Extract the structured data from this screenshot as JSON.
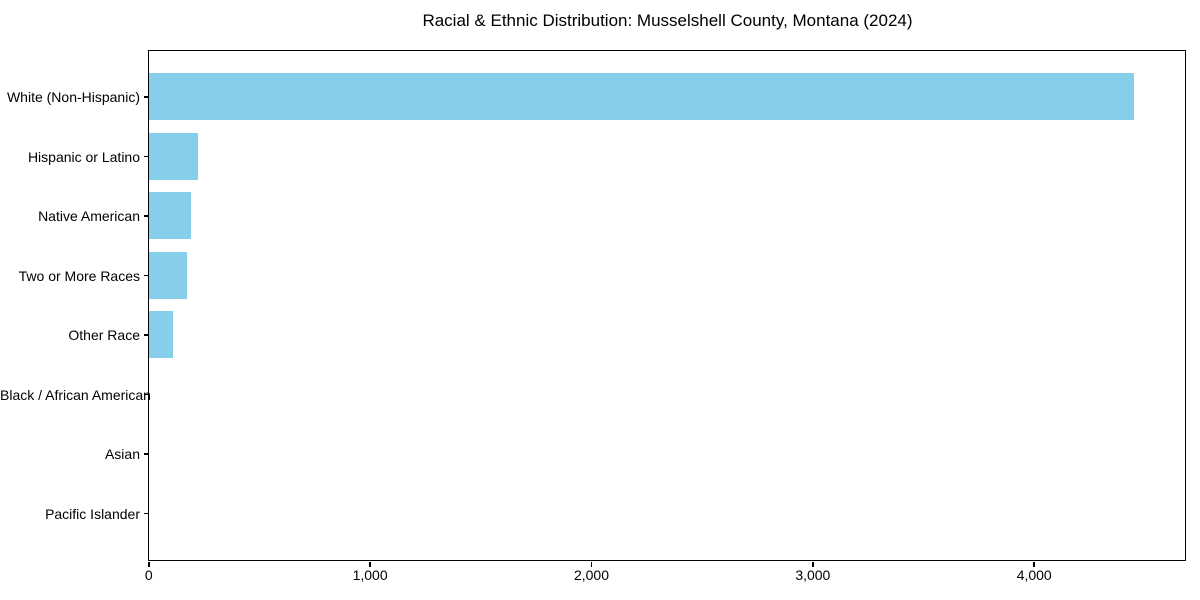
{
  "figure": {
    "background_color": "#ffffff"
  },
  "chart_data": {
    "type": "bar",
    "orientation": "horizontal",
    "title": "Racial & Ethnic Distribution: Musselshell County, Montana (2024)",
    "categories": [
      "White (Non-Hispanic)",
      "Hispanic or Latino",
      "Native American",
      "Two or More Races",
      "Other Race",
      "Black / African American",
      "Asian",
      "Pacific Islander"
    ],
    "values": [
      4450,
      220,
      190,
      170,
      110,
      0,
      0,
      0
    ],
    "bar_color": "#87CEEB",
    "axis_color": "#000000",
    "text_color": "#000000",
    "xlabel": "",
    "ylabel": "",
    "xlim": [
      0,
      4680
    ],
    "xticks": [
      0,
      1000,
      2000,
      3000,
      4000
    ],
    "xtick_labels": [
      "0",
      "1,000",
      "2,000",
      "3,000",
      "4,000"
    ],
    "grid": false,
    "legend": "none",
    "plot_background": "#ffffff"
  }
}
